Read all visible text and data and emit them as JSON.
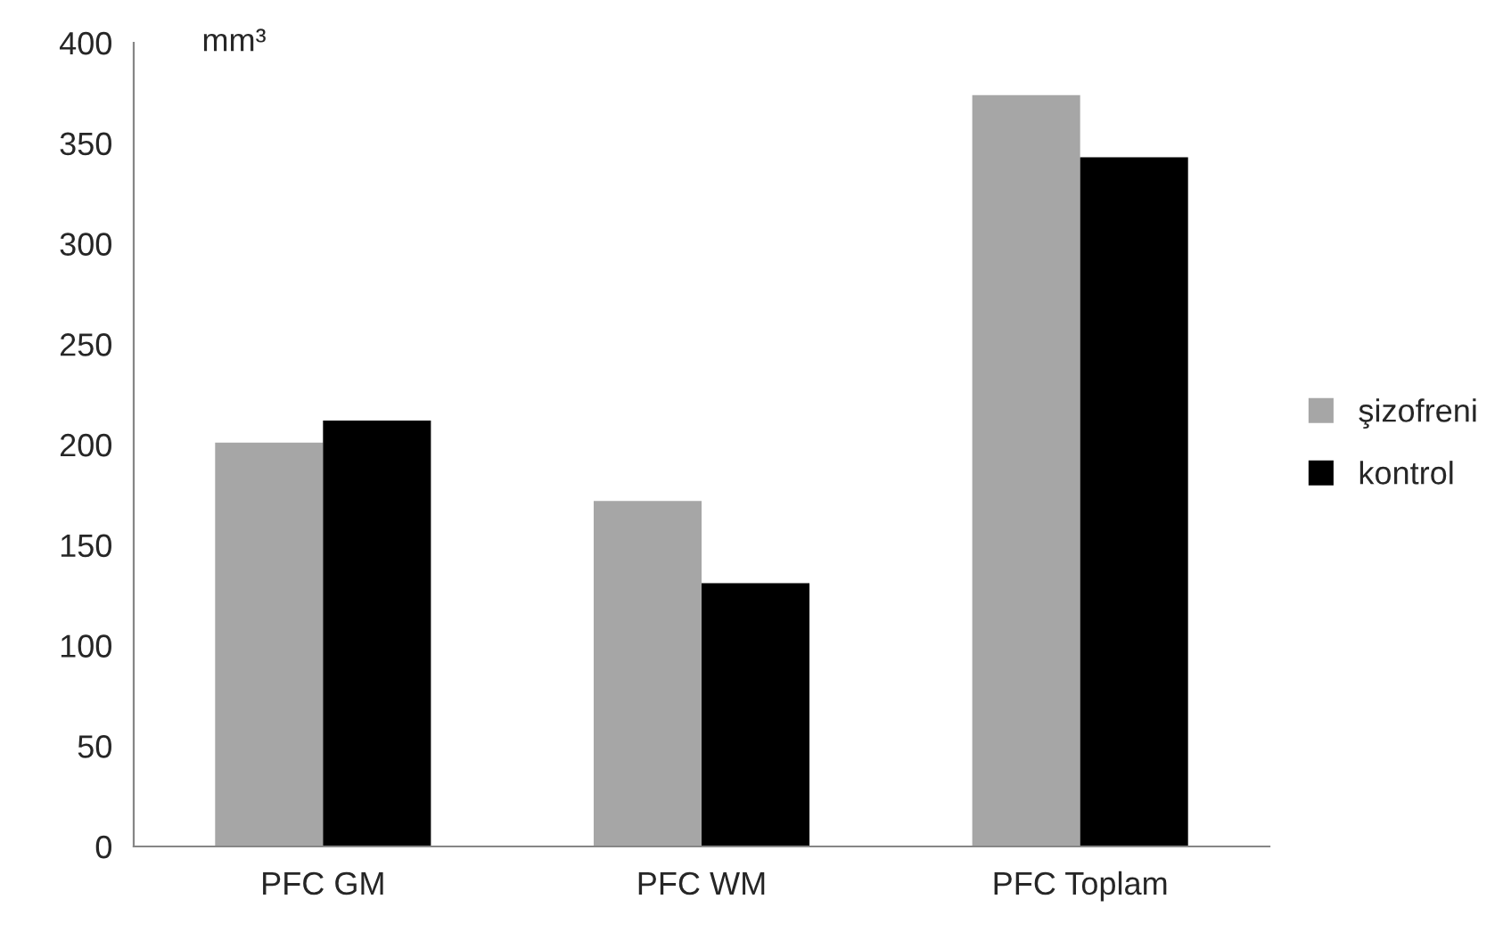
{
  "chart_data": {
    "type": "bar",
    "ylabel": "mm³",
    "categories": [
      "PFC GM",
      "PFC WM",
      "PFC Toplam"
    ],
    "series": [
      {
        "name": "şizofreni",
        "color": "#a6a6a6",
        "values": [
          201,
          172,
          374
        ]
      },
      {
        "name": "kontrol",
        "color": "#000000",
        "values": [
          212,
          131,
          343
        ]
      }
    ],
    "ylim": [
      0,
      400
    ],
    "yticks": [
      0,
      50,
      100,
      150,
      200,
      250,
      300,
      350,
      400
    ],
    "grid": false,
    "legend": "right"
  }
}
